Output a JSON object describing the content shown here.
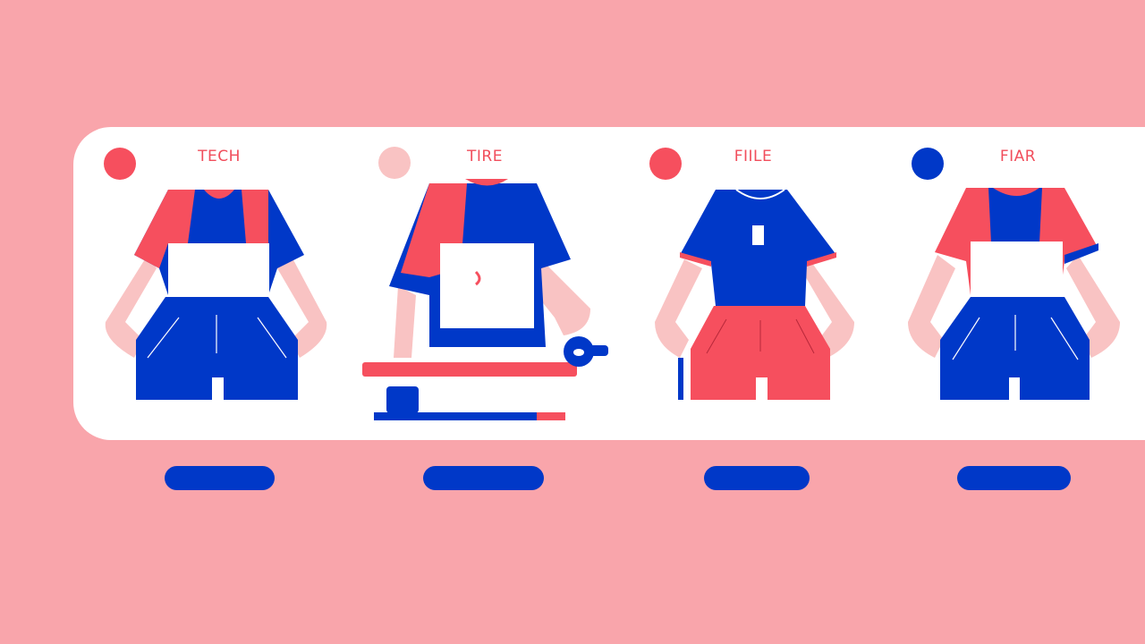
{
  "colors": {
    "background": "#f9a5ab",
    "card": "#ffffff",
    "red": "#f64f5e",
    "blue": "#0038c8",
    "skin": "#f9c3c3",
    "title": "#f14e5c"
  },
  "panels": [
    {
      "title": "TECH",
      "dot_color": "#f64f5e",
      "button_label": ""
    },
    {
      "title": "TIRE",
      "dot_color": "#f9c3c3",
      "button_label": ""
    },
    {
      "title": "FIILE",
      "dot_color": "#f64f5e",
      "button_label": ""
    },
    {
      "title": "FIAR",
      "dot_color": "#0038c8",
      "button_label": ""
    }
  ]
}
